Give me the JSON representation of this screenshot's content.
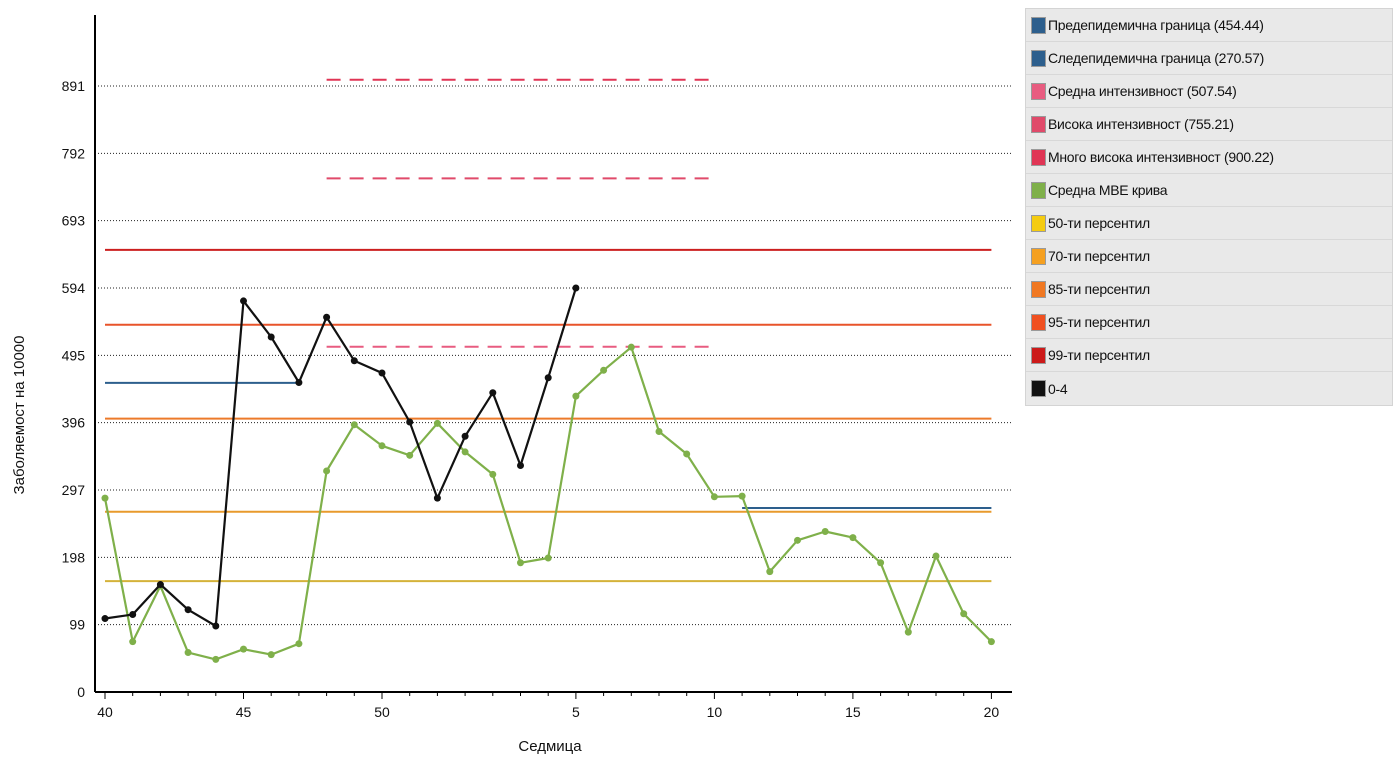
{
  "chart_data": {
    "type": "line",
    "title": "",
    "xlabel": "Седмица",
    "ylabel": "Заболяемост на 10000",
    "ylim": [
      0,
      990
    ],
    "yticks": [
      0,
      99,
      198,
      297,
      396,
      495,
      594,
      693,
      792,
      891
    ],
    "x_categories": [
      "40",
      "41",
      "42",
      "43",
      "44",
      "45",
      "46",
      "47",
      "48",
      "49",
      "50",
      "51",
      "52",
      "1",
      "2",
      "3",
      "4",
      "5",
      "6",
      "7",
      "8",
      "9",
      "10",
      "11",
      "12",
      "13",
      "14",
      "15",
      "16",
      "17",
      "18",
      "19",
      "20"
    ],
    "x_tick_labels": [
      {
        "index": 0,
        "label": "40"
      },
      {
        "index": 5,
        "label": "45"
      },
      {
        "index": 10,
        "label": "50"
      },
      {
        "index": 17,
        "label": "5"
      },
      {
        "index": 22,
        "label": "10"
      },
      {
        "index": 27,
        "label": "15"
      },
      {
        "index": 32,
        "label": "20"
      }
    ],
    "grid": "horizontal dotted",
    "legend_position": "right",
    "reference_lines": [
      {
        "name": "Предепидемична граница (454.44)",
        "value": 454.44,
        "from": 0,
        "to": 7,
        "color": "#2d5f8d",
        "style": "solid"
      },
      {
        "name": "Следепидемична граница (270.57)",
        "value": 270.57,
        "from": 23,
        "to": 32,
        "color": "#2d5f8d",
        "style": "solid"
      },
      {
        "name": "Средна интензивност (507.54)",
        "value": 507.54,
        "from": 8,
        "to": 22,
        "color": "#e85c80",
        "style": "dashed"
      },
      {
        "name": "Висока интензивност (755.21)",
        "value": 755.21,
        "from": 8,
        "to": 22,
        "color": "#e04a6a",
        "style": "dashed"
      },
      {
        "name": "Много висока интензивност (900.22)",
        "value": 900.22,
        "from": 8,
        "to": 22,
        "color": "#e03555",
        "style": "dashed"
      },
      {
        "name": "50-ти персентил",
        "value": 163,
        "from": 0,
        "to": 32,
        "color": "#d4b23a",
        "style": "solid"
      },
      {
        "name": "70-ти персентил",
        "value": 265,
        "from": 0,
        "to": 32,
        "color": "#e89a2c",
        "style": "solid"
      },
      {
        "name": "85-ти персентил",
        "value": 402,
        "from": 0,
        "to": 32,
        "color": "#ec7a2a",
        "style": "solid"
      },
      {
        "name": "95-ти персентил",
        "value": 540,
        "from": 0,
        "to": 32,
        "color": "#e8542a",
        "style": "solid"
      },
      {
        "name": "99-ти персентил",
        "value": 650,
        "from": 0,
        "to": 32,
        "color": "#cc1f1f",
        "style": "solid"
      }
    ],
    "series": [
      {
        "name": "Средна МВЕ крива",
        "color": "#7fb04a",
        "values": [
          285,
          74,
          156,
          58,
          48,
          63,
          55,
          71,
          325,
          393,
          362,
          348,
          395,
          353,
          320,
          190,
          197,
          435,
          473,
          507,
          383,
          350,
          287,
          288,
          177,
          223,
          236,
          227,
          190,
          88,
          200,
          115,
          74
        ]
      },
      {
        "name": "0-4",
        "color": "#111111",
        "values": [
          108,
          114,
          158,
          121,
          97,
          575,
          522,
          455,
          551,
          487,
          469,
          397,
          285,
          376,
          440,
          333,
          462,
          594,
          null,
          null,
          null,
          null,
          null,
          null,
          null,
          null,
          null,
          null,
          null,
          null,
          null,
          null,
          null
        ]
      }
    ],
    "legend": [
      {
        "label": "Предепидемична граница (454.44)",
        "color": "#2d5f8d"
      },
      {
        "label": "Следепидемична граница (270.57)",
        "color": "#2d5f8d"
      },
      {
        "label": "Средна интензивност (507.54)",
        "color": "#e85c80"
      },
      {
        "label": "Висока интензивност (755.21)",
        "color": "#e04a6a"
      },
      {
        "label": "Много висока интензивност (900.22)",
        "color": "#e03555"
      },
      {
        "label": "Средна МВЕ крива",
        "color": "#7fb04a"
      },
      {
        "label": "50-ти персентил",
        "color": "#f5cc10"
      },
      {
        "label": "70-ти персентил",
        "color": "#f5a020"
      },
      {
        "label": "85-ти персентил",
        "color": "#f07822"
      },
      {
        "label": "95-ти персентил",
        "color": "#f05020"
      },
      {
        "label": "99-ти персентил",
        "color": "#cc1a1a"
      },
      {
        "label": "0-4",
        "color": "#111111"
      }
    ]
  }
}
